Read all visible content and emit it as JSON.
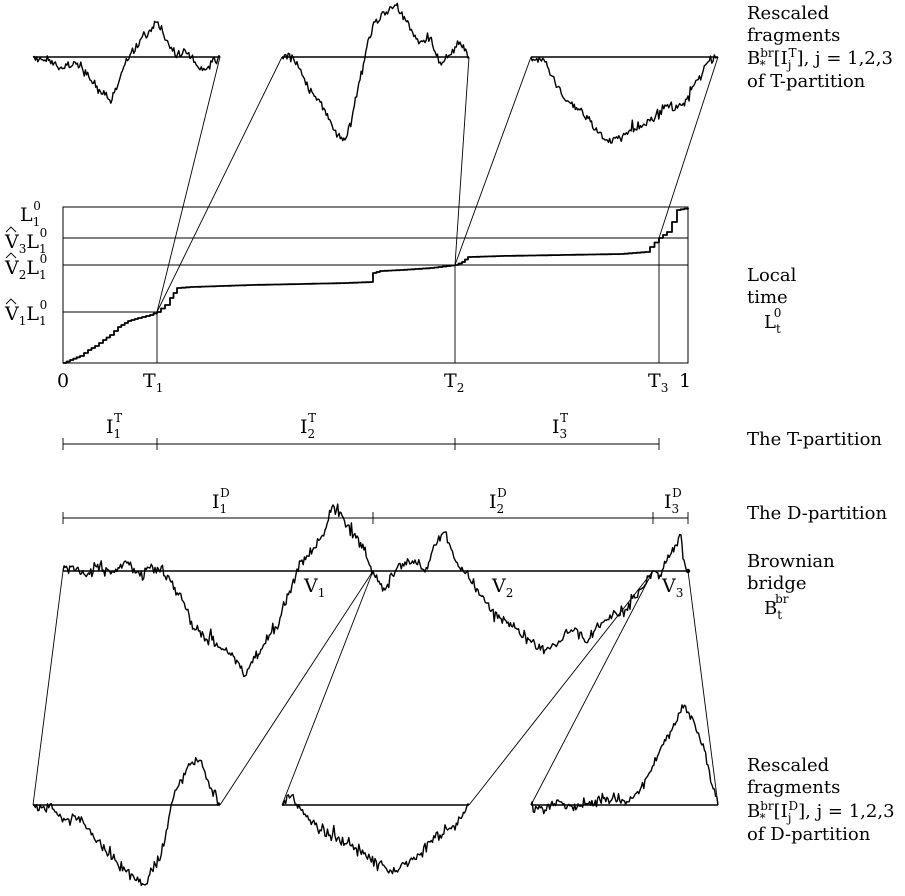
{
  "side_labels": {
    "top": {
      "line1": "Rescaled",
      "line2": "fragments",
      "formula_main": "B",
      "formula_sup": "br",
      "formula_sub": "*",
      "formula_rest": "[I",
      "formula_jsub": "j",
      "formula_tsup": "T",
      "formula_tail": "], j = 1,2,3",
      "line4": "of T-partition"
    },
    "local_time": {
      "line1": "Local",
      "line2": "time",
      "sym": "L",
      "sym_sub": "t",
      "sym_sup": "0"
    },
    "t_partition": "The T-partition",
    "d_partition": "The D-partition",
    "bridge": {
      "line1": "Brownian",
      "line2": "bridge",
      "sym": "B",
      "sym_sub": "t",
      "sym_sup": "br"
    },
    "bottom": {
      "line1": "Rescaled",
      "line2": "fragments",
      "formula_main": "B",
      "formula_sup": "br",
      "formula_sub": "*",
      "formula_rest": "[I",
      "formula_jsub": "j",
      "formula_tsup": "D",
      "formula_tail": "], j = 1,2,3",
      "line4": "of D-partition"
    }
  },
  "y_axis_labels": {
    "l1": {
      "main": "L",
      "sub": "1",
      "sup": "0"
    },
    "v3": {
      "hat": "V",
      "hsub": "3",
      "main": "L",
      "sub": "1",
      "sup": "0"
    },
    "v2": {
      "hat": "V",
      "hsub": "2",
      "main": "L",
      "sub": "1",
      "sup": "0"
    },
    "v1": {
      "hat": "V",
      "hsub": "1",
      "main": "L",
      "sub": "1",
      "sup": "0"
    }
  },
  "x_axis_labels": {
    "zero": "0",
    "one": "1",
    "t1": {
      "main": "T",
      "sub": "1"
    },
    "t2": {
      "main": "T",
      "sub": "2"
    },
    "t3": {
      "main": "T",
      "sub": "3"
    }
  },
  "t_intervals": [
    {
      "main": "I",
      "sub": "1",
      "sup": "T"
    },
    {
      "main": "I",
      "sub": "2",
      "sup": "T"
    },
    {
      "main": "I",
      "sub": "3",
      "sup": "T"
    }
  ],
  "d_intervals": [
    {
      "main": "I",
      "sub": "1",
      "sup": "D"
    },
    {
      "main": "I",
      "sub": "2",
      "sup": "D"
    },
    {
      "main": "I",
      "sub": "3",
      "sup": "D"
    }
  ],
  "bridge_markers": [
    {
      "main": "V",
      "sub": "1"
    },
    {
      "main": "V",
      "sub": "2"
    },
    {
      "main": "V",
      "sub": "3"
    }
  ]
}
